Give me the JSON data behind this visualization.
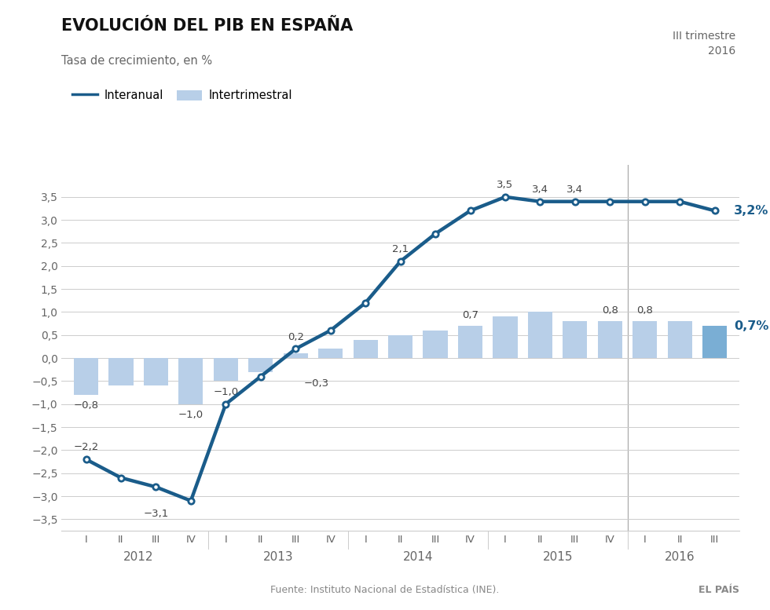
{
  "title": "EVOLUCIÓN DEL PIB EN ESPAÑA",
  "subtitle": "Tasa de crecimiento, en %",
  "legend_line": "Interanual",
  "legend_bar": "Intertrimestral",
  "annotation_top_right_line1": "III trimestre",
  "annotation_top_right_line2": "2016",
  "quarters": [
    "I",
    "II",
    "III",
    "IV",
    "I",
    "II",
    "III",
    "IV",
    "I",
    "II",
    "III",
    "IV",
    "I",
    "II",
    "III",
    "IV",
    "I",
    "II",
    "III"
  ],
  "years": [
    "2012",
    "2013",
    "2014",
    "2015",
    "2016"
  ],
  "interanual": [
    -2.2,
    -2.6,
    -2.8,
    -3.1,
    -1.0,
    -0.4,
    0.2,
    0.6,
    1.2,
    2.1,
    2.7,
    3.2,
    3.5,
    3.4,
    3.4,
    3.4,
    3.4,
    3.4,
    3.2
  ],
  "intertrimestral": [
    -0.8,
    -0.6,
    -0.6,
    -1.0,
    -0.5,
    -0.3,
    0.1,
    0.2,
    0.4,
    0.5,
    0.6,
    0.7,
    0.9,
    1.0,
    0.8,
    0.8,
    0.8,
    0.8,
    0.7
  ],
  "bar_color": "#b8cfe8",
  "bar_color_last": "#7aaed4",
  "line_color": "#1a5c8a",
  "highlight_color": "#1a5c8a",
  "text_color": "#444444",
  "axis_label_color": "#666666",
  "bg_color": "#ffffff",
  "grid_color": "#cccccc",
  "ylim": [
    -3.75,
    4.2
  ],
  "yticks": [
    -3.5,
    -3.0,
    -2.5,
    -2.0,
    -1.5,
    -1.0,
    -0.5,
    0.0,
    0.5,
    1.0,
    1.5,
    2.0,
    2.5,
    3.0,
    3.5
  ],
  "source_text": "Fuente: Instituto Nacional de Estadística (INE).",
  "source_right": "EL PAÍS",
  "vline_color": "#aaaaaa"
}
